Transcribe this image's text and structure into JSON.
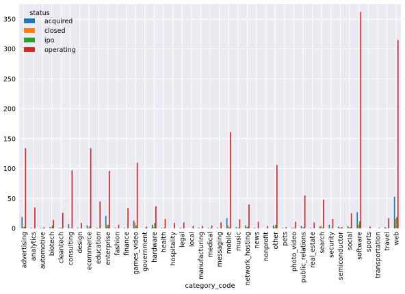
{
  "chart_data": {
    "type": "bar",
    "xlabel": "category_code",
    "ylabel": "",
    "ylim": [
      0,
      375
    ],
    "yticks": [
      0,
      50,
      100,
      150,
      200,
      250,
      300,
      350
    ],
    "grid": true,
    "legend_title": "status",
    "legend_placement": "top-left",
    "categories": [
      "advertising",
      "analytics",
      "automotive",
      "biotech",
      "cleantech",
      "consulting",
      "design",
      "ecommerce",
      "education",
      "enterprise",
      "fashion",
      "finance",
      "games_video",
      "government",
      "hardware",
      "health",
      "hospitality",
      "legal",
      "local",
      "manufacturing",
      "medical",
      "messaging",
      "mobile",
      "music",
      "network_hosting",
      "news",
      "nonprofit",
      "other",
      "pets",
      "photo_video",
      "public_relations",
      "real_estate",
      "search",
      "security",
      "semiconductor",
      "social",
      "software",
      "sports",
      "transportation",
      "travel",
      "web"
    ],
    "series": [
      {
        "name": "acquired",
        "color": "#1f77b4",
        "values": [
          19,
          1,
          1,
          2,
          1,
          7,
          1,
          5,
          1,
          21,
          1,
          1,
          13,
          0,
          6,
          1,
          0,
          1,
          0,
          1,
          1,
          1,
          17,
          2,
          5,
          1,
          0,
          5,
          1,
          1,
          4,
          1,
          3,
          6,
          3,
          4,
          27,
          0,
          0,
          2,
          53
        ]
      },
      {
        "name": "closed",
        "color": "#ff7f0e",
        "values": [
          2,
          0,
          0,
          1,
          1,
          1,
          0,
          1,
          1,
          5,
          0,
          0,
          10,
          0,
          2,
          0,
          0,
          0,
          0,
          0,
          0,
          0,
          5,
          1,
          2,
          0,
          0,
          2,
          0,
          1,
          1,
          0,
          5,
          0,
          1,
          1,
          6,
          0,
          0,
          1,
          16
        ]
      },
      {
        "name": "ipo",
        "color": "#2ca02c",
        "values": [
          3,
          0,
          1,
          5,
          1,
          0,
          0,
          3,
          0,
          6,
          0,
          0,
          5,
          1,
          9,
          1,
          0,
          0,
          0,
          0,
          1,
          0,
          2,
          1,
          3,
          0,
          0,
          6,
          0,
          1,
          2,
          0,
          1,
          1,
          1,
          2,
          12,
          0,
          0,
          0,
          19
        ]
      },
      {
        "name": "operating",
        "color": "#d62728",
        "values": [
          134,
          35,
          2,
          14,
          26,
          97,
          9,
          134,
          45,
          96,
          6,
          34,
          110,
          3,
          37,
          16,
          9,
          10,
          4,
          4,
          5,
          10,
          161,
          15,
          40,
          11,
          4,
          106,
          2,
          11,
          55,
          10,
          48,
          16,
          2,
          25,
          362,
          3,
          1,
          17,
          315
        ]
      }
    ]
  }
}
